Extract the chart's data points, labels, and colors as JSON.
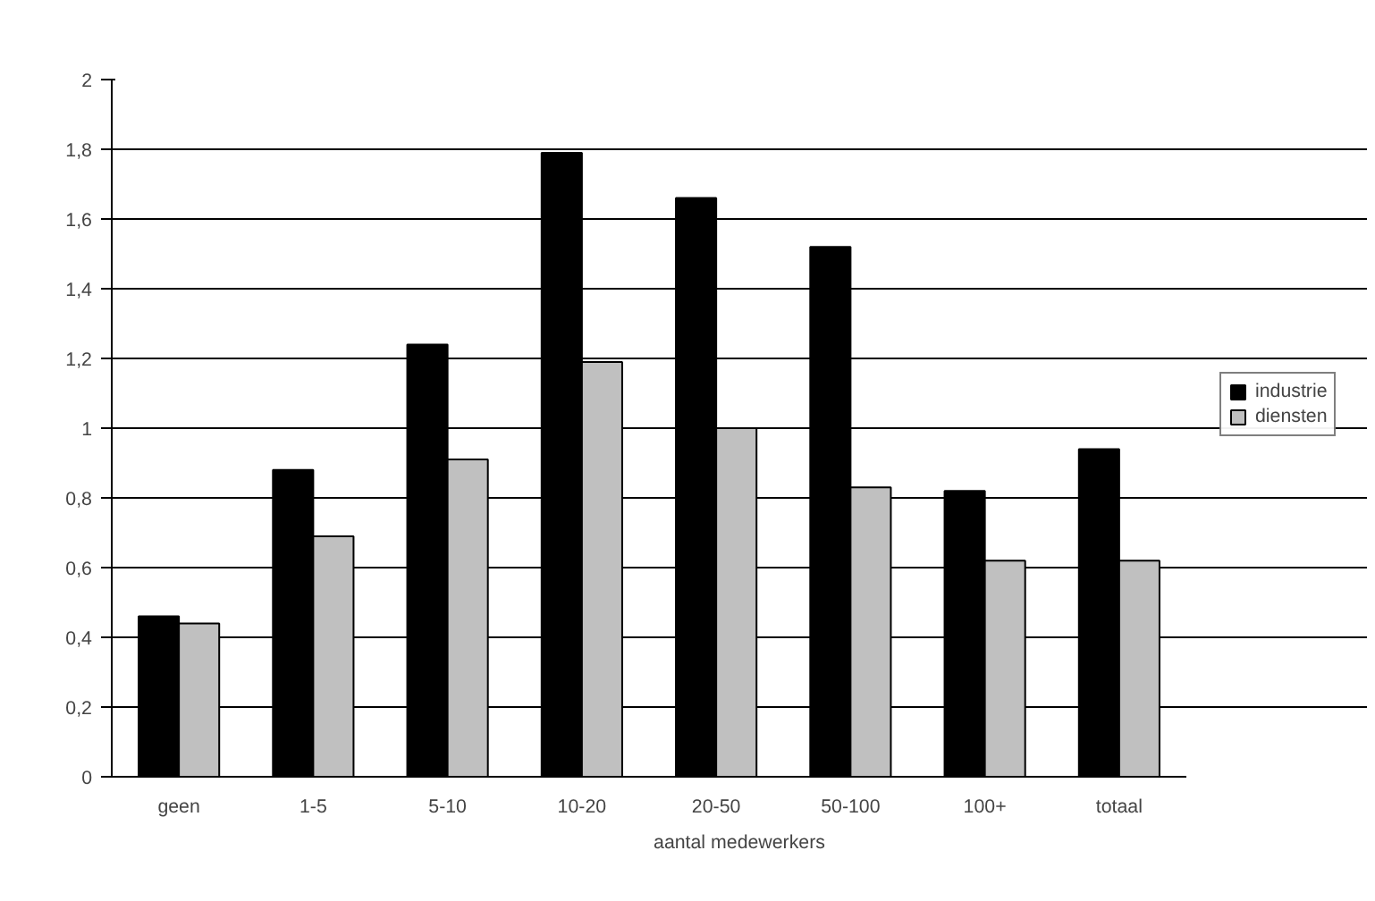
{
  "chart_data": {
    "type": "bar",
    "xlabel": "aantal medewerkers",
    "categories": [
      "geen",
      "1-5",
      "5-10",
      "10-20",
      "20-50",
      "50-100",
      "100+",
      "totaal"
    ],
    "series": [
      {
        "name": "industrie",
        "color": "#000000",
        "values": [
          0.46,
          0.88,
          1.24,
          1.79,
          1.66,
          1.52,
          0.82,
          0.94
        ]
      },
      {
        "name": "diensten",
        "color": "#c0c0c0",
        "values": [
          0.44,
          0.69,
          0.91,
          1.19,
          1.0,
          0.83,
          0.62,
          0.62
        ]
      }
    ],
    "ylim": [
      0,
      2
    ],
    "yticks": [
      0,
      {
        "value": 0.2,
        "label": "0,2"
      },
      {
        "value": 0.4,
        "label": "0,4"
      },
      {
        "value": 0.6,
        "label": "0,6"
      },
      {
        "value": 0.8,
        "label": "0,8"
      },
      1,
      {
        "value": 1.2,
        "label": "1,2"
      },
      {
        "value": 1.4,
        "label": "1,4"
      },
      {
        "value": 1.6,
        "label": "1,6"
      },
      {
        "value": 1.8,
        "label": "1,8"
      },
      2
    ],
    "grid": "y",
    "legend": "right"
  }
}
